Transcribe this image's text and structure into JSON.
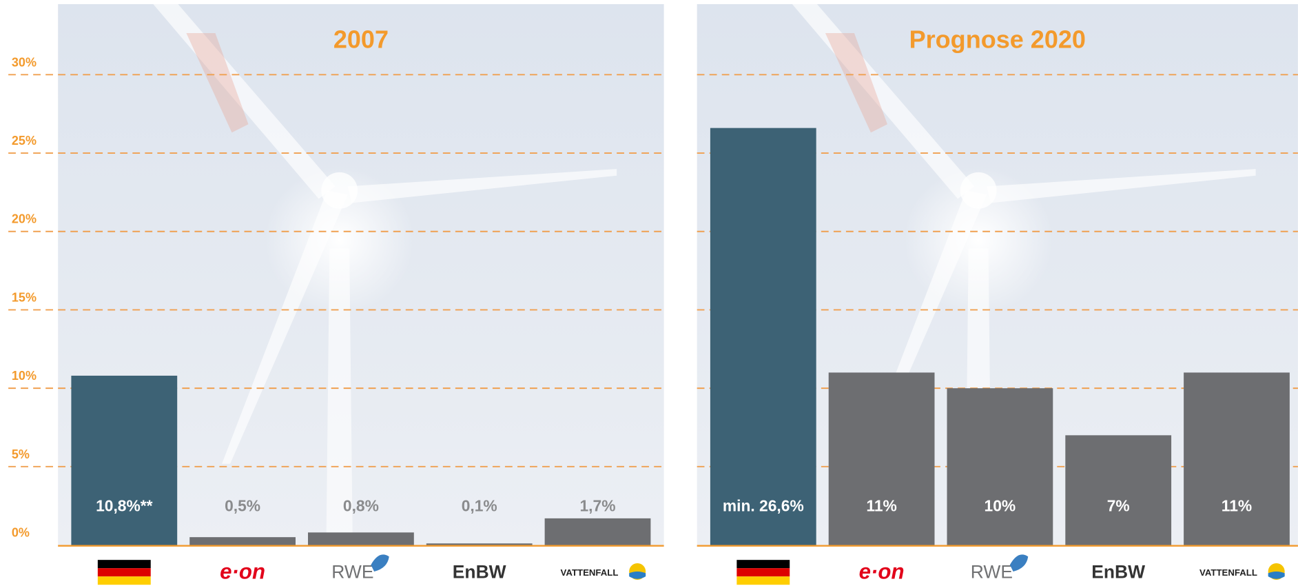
{
  "chart_data": [
    {
      "type": "bar",
      "title": "2007",
      "categories": [
        null,
        "e·on",
        "RWE",
        "EnBW",
        "VATTENFALL"
      ],
      "values": [
        10.8,
        0.5,
        0.8,
        0.1,
        1.7
      ],
      "value_labels": [
        "10,8%**",
        "0,5%",
        "0,8%",
        "0,1%",
        "1,7%"
      ],
      "colors": [
        "#3d6275",
        "#6d6e71",
        "#6d6e71",
        "#6d6e71",
        "#6d6e71"
      ],
      "ylim": [
        0,
        34.5
      ],
      "yticks": [
        {
          "value": 0,
          "label": "0%"
        },
        {
          "value": 5,
          "label": "5%"
        },
        {
          "value": 10,
          "label": "10%"
        },
        {
          "value": 15,
          "label": "15%"
        },
        {
          "value": 20,
          "label": "20%"
        },
        {
          "value": 25,
          "label": "25%"
        },
        {
          "value": 30,
          "label": "30%"
        }
      ],
      "grid": true
    },
    {
      "type": "bar",
      "title": "Prognose 2020",
      "categories": [
        null,
        "e·on",
        "RWE",
        "EnBW",
        "VATTENFALL"
      ],
      "values": [
        26.6,
        11,
        10,
        7,
        11
      ],
      "value_labels": [
        "min. 26,6%",
        "11%",
        "10%",
        "7%",
        "11%"
      ],
      "colors": [
        "#3d6275",
        "#6d6e71",
        "#6d6e71",
        "#6d6e71",
        "#6d6e71"
      ],
      "ylim": [
        0,
        34.5
      ],
      "yticks": [
        0,
        5,
        10,
        15,
        20,
        25,
        30
      ],
      "grid": true
    }
  ]
}
